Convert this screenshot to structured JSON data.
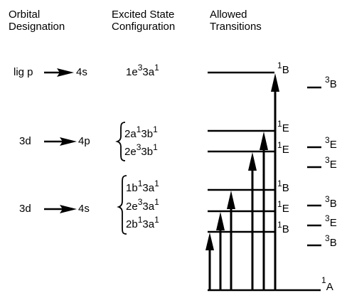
{
  "headers": {
    "col1": [
      "Orbital",
      "Designation"
    ],
    "col2": [
      "Excited State",
      "Configuration"
    ],
    "col3": [
      "Allowed",
      "Transitions"
    ]
  },
  "orbitals": [
    "lig p",
    "4s",
    "3d",
    "4p",
    "3d",
    "4s"
  ],
  "configurations": {
    "c1": {
      "a": "1e",
      "b": "3",
      "c": "3a",
      "d": "1"
    },
    "c2": {
      "a": "2a",
      "b": "1",
      "c": "3b",
      "d": "1"
    },
    "c3": {
      "a": "2e",
      "b": "3",
      "c": "3b",
      "d": "1"
    },
    "c4": {
      "a": "1b",
      "b": "1",
      "c": "3a",
      "d": "1"
    },
    "c5": {
      "a": "2e",
      "b": "3",
      "c": "3a",
      "d": "1"
    },
    "c6": {
      "a": "2b",
      "b": "1",
      "c": "3a",
      "d": "1"
    }
  },
  "left_levels": [
    {
      "sup": "1",
      "sym": "B"
    },
    {
      "sup": "1",
      "sym": "E"
    },
    {
      "sup": "1",
      "sym": "E"
    },
    {
      "sup": "1",
      "sym": "B"
    },
    {
      "sup": "1",
      "sym": "E"
    },
    {
      "sup": "1",
      "sym": "B"
    }
  ],
  "right_levels": [
    {
      "sup": "3",
      "sym": "B"
    },
    {
      "sup": "3",
      "sym": "E"
    },
    {
      "sup": "3",
      "sym": "E"
    },
    {
      "sup": "3",
      "sym": "B"
    },
    {
      "sup": "3",
      "sym": "E"
    },
    {
      "sup": "3",
      "sym": "B"
    }
  ],
  "ground": {
    "sup": "1",
    "sym": "A"
  }
}
